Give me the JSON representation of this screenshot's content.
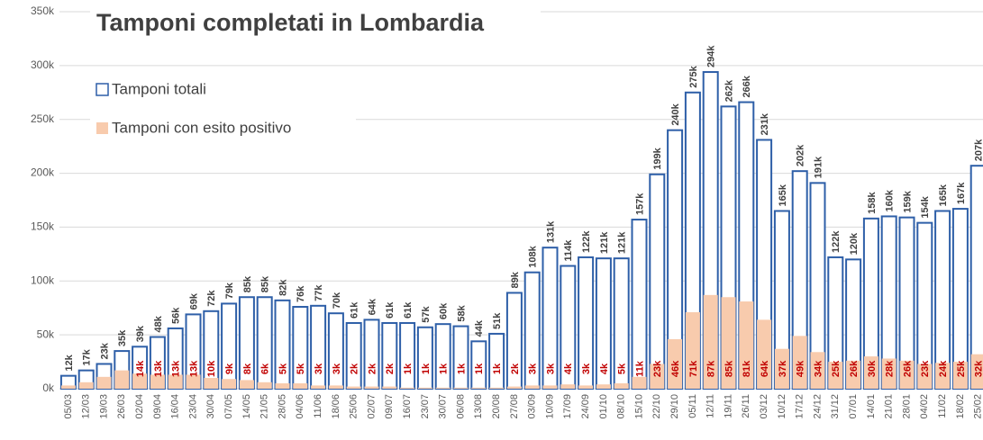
{
  "chart_data": {
    "type": "bar",
    "title": "Tamponi completati in Lombardia",
    "categories": [
      "05/03",
      "12/03",
      "19/03",
      "26/03",
      "02/04",
      "09/04",
      "16/04",
      "23/04",
      "30/04",
      "07/05",
      "14/05",
      "21/05",
      "28/05",
      "04/06",
      "11/06",
      "18/06",
      "25/06",
      "02/07",
      "09/07",
      "16/07",
      "23/07",
      "30/07",
      "06/08",
      "13/08",
      "20/08",
      "27/08",
      "03/09",
      "10/09",
      "17/09",
      "24/09",
      "01/10",
      "08/10",
      "15/10",
      "22/10",
      "29/10",
      "05/11",
      "12/11",
      "19/11",
      "26/11",
      "03/12",
      "10/12",
      "17/12",
      "24/12",
      "31/12",
      "07/01",
      "14/01",
      "21/01",
      "28/01",
      "04/02",
      "11/02",
      "18/02",
      "25/02"
    ],
    "series": [
      {
        "name": "Tamponi totali",
        "color": "#2e5fa8",
        "values": [
          12000,
          17000,
          23000,
          35000,
          39000,
          48000,
          56000,
          69000,
          72000,
          79000,
          85000,
          85000,
          82000,
          76000,
          77000,
          70000,
          61000,
          64000,
          61000,
          61000,
          57000,
          60000,
          58000,
          44000,
          51000,
          89000,
          108000,
          131000,
          114000,
          122000,
          121000,
          121000,
          157000,
          199000,
          240000,
          275000,
          294000,
          262000,
          266000,
          231000,
          165000,
          202000,
          191000,
          122000,
          120000,
          158000,
          160000,
          159000,
          154000,
          165000,
          167000,
          207000
        ],
        "value_labels": [
          "12k",
          "17k",
          "23k",
          "35k",
          "39k",
          "48k",
          "56k",
          "69k",
          "72k",
          "79k",
          "85k",
          "85k",
          "82k",
          "76k",
          "77k",
          "70k",
          "61k",
          "64k",
          "61k",
          "61k",
          "57k",
          "60k",
          "58k",
          "44k",
          "51k",
          "89k",
          "108k",
          "131k",
          "114k",
          "122k",
          "121k",
          "121k",
          "157k",
          "199k",
          "240k",
          "275k",
          "294k",
          "262k",
          "266k",
          "231k",
          "165k",
          "202k",
          "191k",
          "122k",
          "120k",
          "158k",
          "160k",
          "159k",
          "154k",
          "165k",
          "167k",
          "207k"
        ]
      },
      {
        "name": "Tamponi con esito positivo",
        "color": "#f8cbad",
        "values": [
          3000,
          6000,
          11000,
          17000,
          14000,
          13000,
          13000,
          13000,
          10000,
          9000,
          8000,
          6000,
          5000,
          5000,
          3000,
          3000,
          2000,
          2000,
          2000,
          1000,
          1000,
          1000,
          1000,
          1000,
          1000,
          2000,
          3000,
          3000,
          4000,
          3000,
          4000,
          5000,
          11000,
          23000,
          46000,
          71000,
          87000,
          85000,
          81000,
          64000,
          37000,
          49000,
          34000,
          25000,
          26000,
          30000,
          28000,
          26000,
          23000,
          24000,
          25000,
          32000
        ],
        "value_labels": [
          null,
          null,
          null,
          null,
          "14k",
          "13k",
          "13k",
          "13k",
          "10k",
          "9k",
          "8k",
          "6k",
          "5k",
          "5k",
          "3k",
          "3k",
          "2k",
          "2k",
          "2k",
          "1k",
          "1k",
          "1k",
          "1k",
          "1k",
          "1k",
          "2k",
          "3k",
          "3k",
          "4k",
          "3k",
          "4k",
          "5k",
          "11k",
          "23k",
          "46k",
          "71k",
          "87k",
          "85k",
          "81k",
          "64k",
          "37k",
          "49k",
          "34k",
          "25k",
          "26k",
          "30k",
          "28k",
          "26k",
          "23k",
          "24k",
          "25k",
          "32k"
        ]
      }
    ],
    "ylim": [
      0,
      350000
    ],
    "yticks": [
      {
        "value": 0,
        "label": "0k"
      },
      {
        "value": 50000,
        "label": "50k"
      },
      {
        "value": 100000,
        "label": "100k"
      },
      {
        "value": 150000,
        "label": "150k"
      },
      {
        "value": 200000,
        "label": "200k"
      },
      {
        "value": 250000,
        "label": "250k"
      },
      {
        "value": 300000,
        "label": "300k"
      },
      {
        "value": 350000,
        "label": "350k"
      }
    ],
    "grid": true
  }
}
